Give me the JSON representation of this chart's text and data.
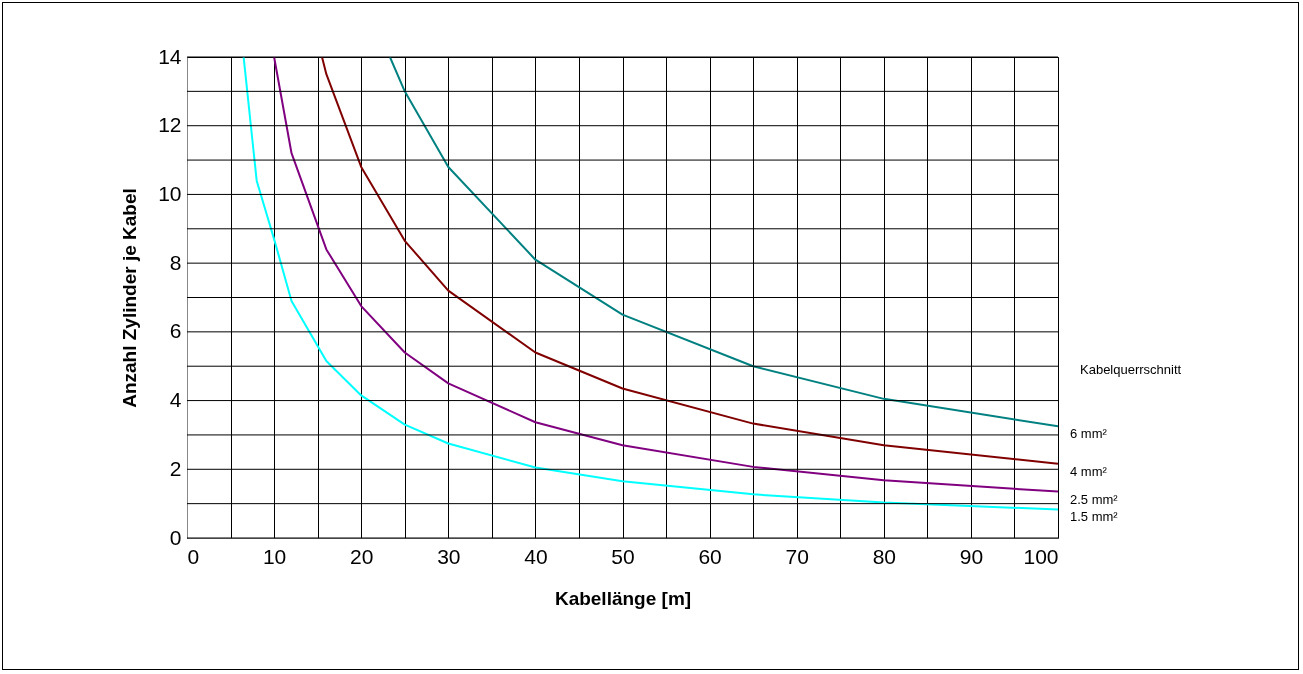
{
  "chart_data": {
    "type": "line",
    "xlabel": "Kabellänge [m]",
    "ylabel": "Anzahl Zylinder je Kabel",
    "legend_title": "Kabelquerrschnitt",
    "xlim": [
      0,
      100
    ],
    "ylim": [
      0,
      14
    ],
    "xticks": [
      0,
      {
        "value": 5,
        "label": null
      },
      10,
      {
        "value": 15,
        "label": null
      },
      20,
      {
        "value": 25,
        "label": null
      },
      30,
      {
        "value": 35,
        "label": null
      },
      40,
      {
        "value": 45,
        "label": null
      },
      50,
      {
        "value": 55,
        "label": null
      },
      60,
      {
        "value": 65,
        "label": null
      },
      70,
      {
        "value": 75,
        "label": null
      },
      80,
      {
        "value": 85,
        "label": null
      },
      90,
      {
        "value": 95,
        "label": null
      },
      100
    ],
    "yticks": [
      0,
      {
        "value": 1,
        "label": null
      },
      2,
      {
        "value": 3,
        "label": null
      },
      4,
      {
        "value": 5,
        "label": null
      },
      6,
      {
        "value": 7,
        "label": null
      },
      8,
      {
        "value": 9,
        "label": null
      },
      10,
      {
        "value": 11,
        "label": null
      },
      12,
      {
        "value": 13,
        "label": null
      },
      14
    ],
    "grid": true,
    "legend": "right",
    "marker": "none",
    "line_style": "solid",
    "series": [
      {
        "name": "6 mm²",
        "color": "#008080",
        "x": [
          23.3,
          25,
          30,
          40,
          50,
          65,
          80,
          100
        ],
        "values": [
          14,
          13.0,
          10.8,
          8.1,
          6.5,
          5.0,
          4.05,
          3.25
        ]
      },
      {
        "name": "4 mm²",
        "color": "#800000",
        "x": [
          15.5,
          16,
          20,
          25,
          30,
          40,
          50,
          65,
          80,
          100
        ],
        "values": [
          14,
          13.5,
          10.8,
          8.65,
          7.2,
          5.4,
          4.35,
          3.33,
          2.7,
          2.16
        ]
      },
      {
        "name": "2.5 mm²",
        "color": "#800080",
        "x": [
          10,
          12,
          16,
          20,
          25,
          30,
          40,
          50,
          65,
          80,
          100
        ],
        "values": [
          14,
          11.2,
          8.4,
          6.75,
          5.4,
          4.5,
          3.37,
          2.7,
          2.07,
          1.68,
          1.35
        ]
      },
      {
        "name": "1.5 mm²",
        "color": "#00ffff",
        "x": [
          6.5,
          8,
          10,
          12,
          16,
          20,
          25,
          30,
          40,
          50,
          65,
          80,
          100
        ],
        "values": [
          14,
          10.4,
          8.7,
          6.9,
          5.15,
          4.15,
          3.3,
          2.75,
          2.05,
          1.65,
          1.27,
          1.03,
          0.83
        ]
      }
    ]
  }
}
